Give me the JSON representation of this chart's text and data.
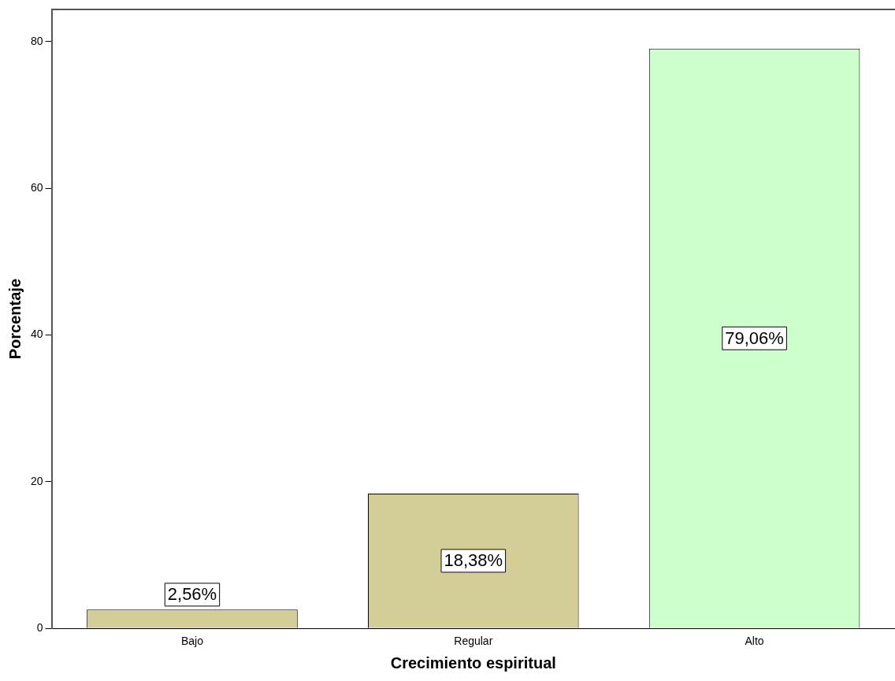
{
  "chart_data": {
    "type": "bar",
    "xlabel": "Crecimiento espiritual",
    "ylabel": "Porcentaje",
    "categories": [
      "Bajo",
      "Regular",
      "Alto"
    ],
    "values": [
      2.56,
      18.38,
      79.06
    ],
    "value_labels": [
      "2,56%",
      "18,38%",
      "79,06%"
    ],
    "colors": [
      "#d3ce97",
      "#d3ce97",
      "#ccffcc"
    ],
    "ylim": [
      0,
      84.4
    ],
    "yticks": [
      0,
      20,
      40,
      60,
      80
    ],
    "grid": false,
    "legend": false
  }
}
